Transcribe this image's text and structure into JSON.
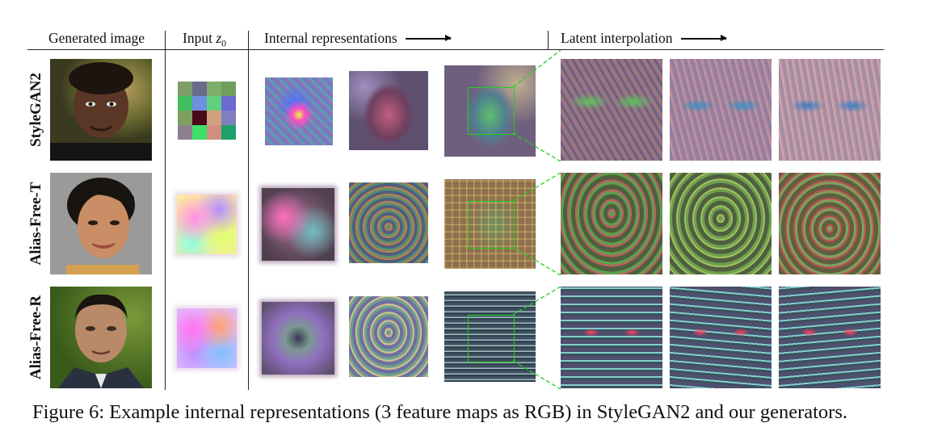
{
  "headers": {
    "generated": "Generated image",
    "input": "Input",
    "input_var": "z",
    "input_sub": "0",
    "internal": "Internal representations",
    "latent": "Latent interpolation"
  },
  "rows": [
    {
      "label": "StyleGAN2"
    },
    {
      "label": "Alias-Free-T"
    },
    {
      "label": "Alias-Free-R"
    }
  ],
  "z_grid_colors": [
    "#7f9f6a",
    "#6a6a8a",
    "#7fae6a",
    "#6f9f5f",
    "#3fbf5f",
    "#6f8fe0",
    "#5fd07f",
    "#6a6ad0",
    "#7f9f5f",
    "#4a0a1a",
    "#d0a07f",
    "#7f7fc0",
    "#8f7f8f",
    "#3fe06a",
    "#d08f7f",
    "#1f9f6a"
  ],
  "caption": "Figure 6: Example internal representations (3 feature maps as RGB) in StyleGAN2 and our generators."
}
